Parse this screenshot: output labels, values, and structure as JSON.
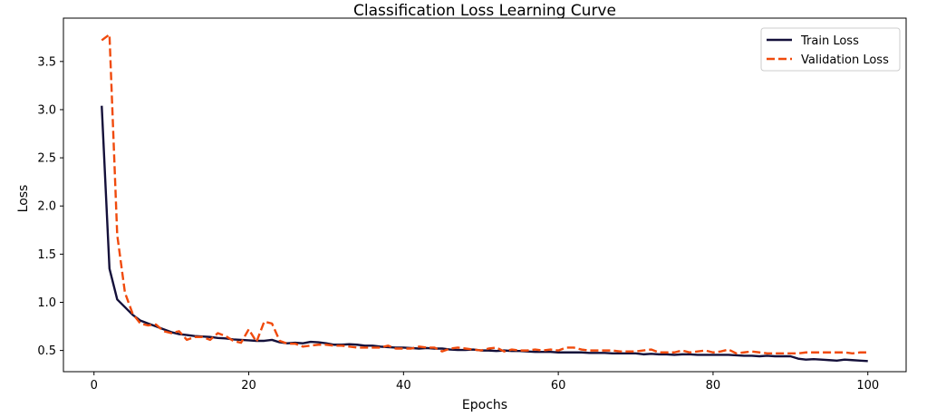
{
  "chart_data": {
    "type": "line",
    "title": "Classification Loss Learning Curve",
    "xlabel": "Epochs",
    "ylabel": "Loss",
    "xlim": [
      -3.95,
      104.95
    ],
    "ylim": [
      0.28,
      3.95
    ],
    "xticks": [
      0,
      20,
      40,
      60,
      80,
      100
    ],
    "xtick_labels": [
      "0",
      "20",
      "40",
      "60",
      "80",
      "100"
    ],
    "yticks": [
      0.5,
      1.0,
      1.5,
      2.0,
      2.5,
      3.0,
      3.5
    ],
    "ytick_labels": [
      "0.5",
      "1.0",
      "1.5",
      "2.0",
      "2.5",
      "3.0",
      "3.5"
    ],
    "grid": false,
    "legend_position": "top-right",
    "series": [
      {
        "name": "Train Loss",
        "color": "#14103a",
        "style": "solid",
        "x": [
          1,
          2,
          3,
          4,
          5,
          6,
          7,
          8,
          9,
          10,
          11,
          12,
          13,
          14,
          15,
          16,
          17,
          18,
          19,
          20,
          21,
          22,
          23,
          24,
          25,
          26,
          27,
          28,
          29,
          30,
          31,
          32,
          33,
          34,
          35,
          36,
          37,
          38,
          39,
          40,
          41,
          42,
          43,
          44,
          45,
          46,
          47,
          48,
          49,
          50,
          51,
          52,
          53,
          54,
          55,
          56,
          57,
          58,
          59,
          60,
          61,
          62,
          63,
          64,
          65,
          66,
          67,
          68,
          69,
          70,
          71,
          72,
          73,
          74,
          75,
          76,
          77,
          78,
          79,
          80,
          81,
          82,
          83,
          84,
          85,
          86,
          87,
          88,
          89,
          90,
          91,
          92,
          93,
          94,
          95,
          96,
          97,
          98,
          99,
          100
        ],
        "values": [
          3.04,
          1.35,
          1.03,
          0.95,
          0.87,
          0.81,
          0.78,
          0.75,
          0.72,
          0.69,
          0.67,
          0.66,
          0.65,
          0.645,
          0.64,
          0.63,
          0.625,
          0.615,
          0.61,
          0.605,
          0.6,
          0.6,
          0.61,
          0.585,
          0.575,
          0.58,
          0.575,
          0.59,
          0.585,
          0.575,
          0.56,
          0.56,
          0.565,
          0.56,
          0.55,
          0.55,
          0.54,
          0.535,
          0.53,
          0.53,
          0.525,
          0.52,
          0.525,
          0.52,
          0.52,
          0.51,
          0.505,
          0.505,
          0.51,
          0.5,
          0.5,
          0.495,
          0.5,
          0.495,
          0.495,
          0.49,
          0.485,
          0.485,
          0.485,
          0.48,
          0.48,
          0.48,
          0.48,
          0.475,
          0.475,
          0.475,
          0.47,
          0.47,
          0.47,
          0.47,
          0.46,
          0.465,
          0.46,
          0.46,
          0.455,
          0.46,
          0.46,
          0.455,
          0.455,
          0.455,
          0.455,
          0.455,
          0.45,
          0.445,
          0.445,
          0.44,
          0.445,
          0.44,
          0.44,
          0.44,
          0.415,
          0.405,
          0.41,
          0.405,
          0.4,
          0.395,
          0.405,
          0.4,
          0.395,
          0.39
        ]
      },
      {
        "name": "Validation Loss",
        "color": "#f04a0c",
        "style": "dashed",
        "x": [
          1,
          2,
          3,
          4,
          5,
          6,
          7,
          8,
          9,
          10,
          11,
          12,
          13,
          14,
          15,
          16,
          17,
          18,
          19,
          20,
          21,
          22,
          23,
          24,
          25,
          26,
          27,
          28,
          29,
          30,
          31,
          32,
          33,
          34,
          35,
          36,
          37,
          38,
          39,
          40,
          41,
          42,
          43,
          44,
          45,
          46,
          47,
          48,
          49,
          50,
          51,
          52,
          53,
          54,
          55,
          56,
          57,
          58,
          59,
          60,
          61,
          62,
          63,
          64,
          65,
          66,
          67,
          68,
          69,
          70,
          71,
          72,
          73,
          74,
          75,
          76,
          77,
          78,
          79,
          80,
          81,
          82,
          83,
          84,
          85,
          86,
          87,
          88,
          89,
          90,
          91,
          92,
          93,
          94,
          95,
          96,
          97,
          98,
          99,
          100
        ],
        "values": [
          3.72,
          3.78,
          1.7,
          1.1,
          0.88,
          0.78,
          0.76,
          0.77,
          0.7,
          0.68,
          0.7,
          0.61,
          0.64,
          0.64,
          0.61,
          0.68,
          0.65,
          0.6,
          0.58,
          0.72,
          0.59,
          0.8,
          0.78,
          0.6,
          0.57,
          0.57,
          0.54,
          0.55,
          0.56,
          0.56,
          0.55,
          0.55,
          0.54,
          0.53,
          0.53,
          0.53,
          0.53,
          0.55,
          0.52,
          0.52,
          0.52,
          0.54,
          0.53,
          0.53,
          0.49,
          0.52,
          0.53,
          0.52,
          0.51,
          0.5,
          0.52,
          0.53,
          0.49,
          0.51,
          0.5,
          0.5,
          0.51,
          0.5,
          0.51,
          0.5,
          0.53,
          0.53,
          0.51,
          0.5,
          0.5,
          0.5,
          0.5,
          0.49,
          0.49,
          0.49,
          0.5,
          0.51,
          0.48,
          0.48,
          0.48,
          0.5,
          0.48,
          0.49,
          0.5,
          0.48,
          0.49,
          0.51,
          0.47,
          0.48,
          0.49,
          0.48,
          0.47,
          0.47,
          0.47,
          0.47,
          0.47,
          0.48,
          0.48,
          0.48,
          0.48,
          0.48,
          0.48,
          0.47,
          0.48,
          0.48
        ]
      }
    ]
  }
}
